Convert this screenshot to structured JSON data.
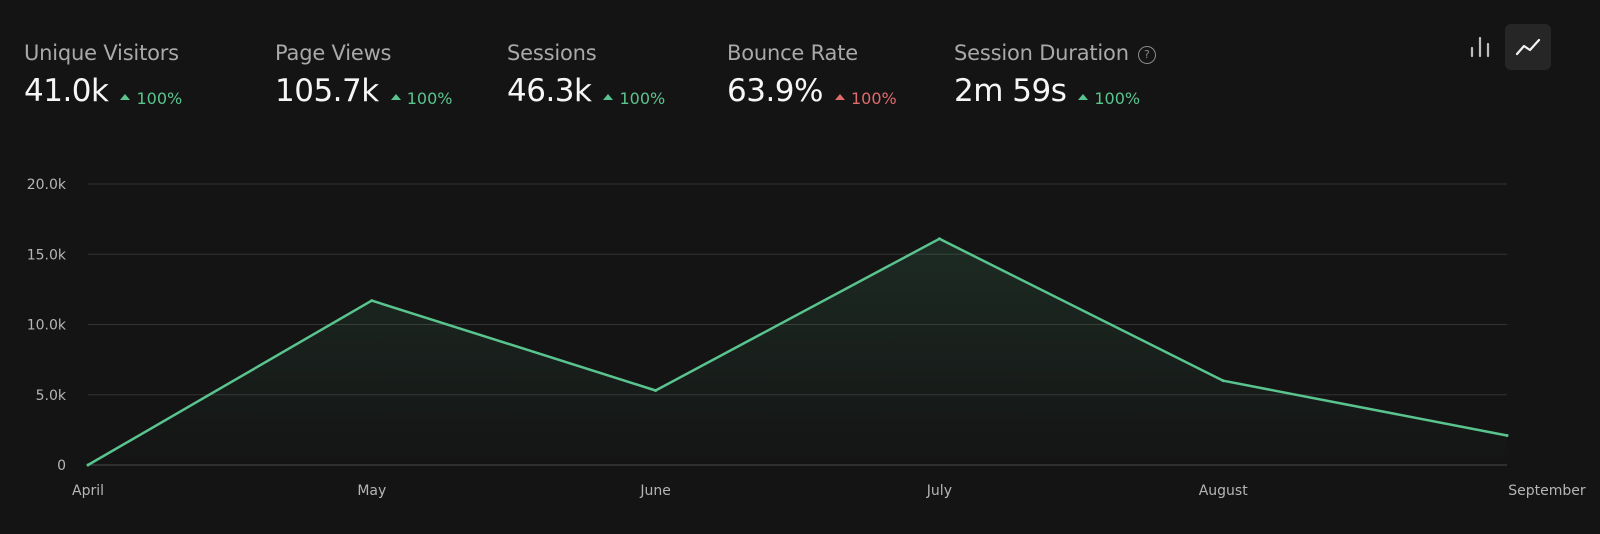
{
  "metrics": [
    {
      "label": "Unique Visitors",
      "value": "41.0k",
      "delta": "100%",
      "direction": "up",
      "active": true
    },
    {
      "label": "Page Views",
      "value": "105.7k",
      "delta": "100%",
      "direction": "up",
      "active": false
    },
    {
      "label": "Sessions",
      "value": "46.3k",
      "delta": "100%",
      "direction": "up",
      "active": false
    },
    {
      "label": "Bounce Rate",
      "value": "63.9%",
      "delta": "100%",
      "direction": "up",
      "active": false
    },
    {
      "label": "Session Duration",
      "value": "2m 59s",
      "delta": "100%",
      "direction": "up",
      "active": false
    }
  ],
  "help_icon_text": "?",
  "view_toggle": {
    "options": [
      "bar-chart-icon",
      "line-chart-icon"
    ],
    "selected": "line-chart-icon"
  },
  "colors": {
    "accent": "#5ac48e",
    "negative": "#e06b6b",
    "background": "#141414",
    "card": "#1f1f1f",
    "grid": "#333333"
  },
  "chart_data": {
    "type": "area",
    "x": [
      "April",
      "May",
      "June",
      "July",
      "August",
      "September"
    ],
    "series": [
      {
        "values": [
          0,
          11700,
          5300,
          16100,
          6000,
          2100
        ]
      }
    ],
    "ylim": [
      0,
      20000
    ],
    "yticks": [
      0,
      5000,
      10000,
      15000,
      20000
    ],
    "ytick_labels": [
      "0",
      "5.0k",
      "10.0k",
      "15.0k",
      "20.0k"
    ],
    "grid": true,
    "legend": "none"
  }
}
